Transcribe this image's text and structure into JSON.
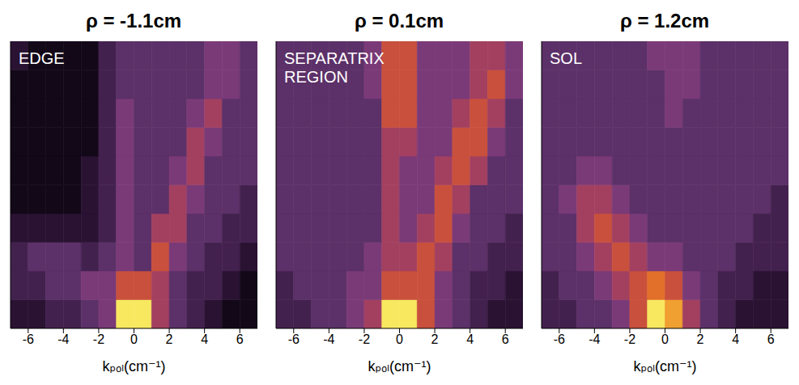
{
  "chart_data": [
    {
      "type": "heatmap",
      "title": "ρ = -1.1cm",
      "annotation": "EDGE",
      "x_label": "kₚₒₗ(cm⁻¹)",
      "xlim": [
        -7,
        7
      ],
      "xticks": [
        -6,
        -4,
        -2,
        0,
        2,
        4,
        6
      ],
      "ylim": [
        0,
        10
      ],
      "tick_labels": "x",
      "zlim": [
        0,
        9
      ],
      "x": [
        -6.5,
        -5.5,
        -4.5,
        -3.5,
        -2.5,
        -1.5,
        -0.5,
        0.5,
        1.5,
        2.5,
        3.5,
        4.5,
        5.5,
        6.5
      ],
      "y": [
        0.5,
        1.5,
        2.5,
        3.5,
        4.5,
        5.5,
        6.5,
        7.5,
        8.5,
        9.5
      ],
      "z": [
        [
          1,
          1,
          2,
          2,
          3,
          4,
          9,
          9,
          5,
          3,
          2,
          1,
          0,
          0
        ],
        [
          2,
          2,
          3,
          3,
          4,
          4,
          6,
          6,
          5,
          3,
          2,
          2,
          1,
          0
        ],
        [
          2,
          3,
          3,
          3,
          2,
          3,
          4,
          3,
          6,
          4,
          3,
          2,
          2,
          1
        ],
        [
          1,
          1,
          1,
          1,
          1,
          2,
          4,
          3,
          5,
          5,
          3,
          3,
          2,
          2
        ],
        [
          0,
          0,
          0,
          0,
          1,
          2,
          4,
          3,
          3,
          5,
          4,
          3,
          3,
          2
        ],
        [
          0,
          0,
          0,
          0,
          1,
          2,
          4,
          3,
          3,
          4,
          5,
          3,
          3,
          3
        ],
        [
          0,
          0,
          0,
          0,
          0,
          2,
          4,
          3,
          3,
          3,
          5,
          4,
          3,
          3
        ],
        [
          0,
          0,
          0,
          0,
          0,
          2,
          4,
          3,
          3,
          3,
          4,
          5,
          3,
          3
        ],
        [
          0,
          0,
          0,
          0,
          0,
          2,
          3,
          3,
          3,
          3,
          3,
          4,
          4,
          3
        ],
        [
          1,
          0,
          0,
          0,
          0,
          2,
          3,
          3,
          3,
          3,
          3,
          4,
          4,
          3
        ]
      ]
    },
    {
      "type": "heatmap",
      "title": "ρ = 0.1cm",
      "annotation": "SEPARATRIX REGION",
      "x_label": "kₚₒₗ(cm⁻¹)",
      "xlim": [
        -7,
        7
      ],
      "xticks": [
        -6,
        -4,
        -2,
        0,
        2,
        4,
        6
      ],
      "ylim": [
        0,
        10
      ],
      "tick_labels": "x",
      "zlim": [
        0,
        9
      ],
      "x": [
        -6.5,
        -5.5,
        -4.5,
        -3.5,
        -2.5,
        -1.5,
        -0.5,
        0.5,
        1.5,
        2.5,
        3.5,
        4.5,
        5.5,
        6.5
      ],
      "y": [
        0.5,
        1.5,
        2.5,
        3.5,
        4.5,
        5.5,
        6.5,
        7.5,
        8.5,
        9.5
      ],
      "z": [
        [
          2,
          2,
          3,
          3,
          4,
          5,
          9,
          9,
          6,
          4,
          3,
          2,
          1,
          1
        ],
        [
          2,
          3,
          3,
          3,
          4,
          4,
          6,
          6,
          6,
          4,
          3,
          2,
          2,
          1
        ],
        [
          3,
          3,
          3,
          3,
          3,
          4,
          5,
          5,
          6,
          5,
          3,
          3,
          2,
          2
        ],
        [
          3,
          3,
          3,
          3,
          3,
          3,
          5,
          4,
          5,
          6,
          4,
          3,
          3,
          2
        ],
        [
          3,
          3,
          3,
          3,
          3,
          3,
          5,
          4,
          4,
          6,
          5,
          3,
          3,
          3
        ],
        [
          3,
          3,
          3,
          3,
          3,
          3,
          5,
          4,
          4,
          5,
          6,
          5,
          3,
          3
        ],
        [
          3,
          3,
          3,
          3,
          3,
          3,
          5,
          5,
          4,
          4,
          6,
          6,
          4,
          3
        ],
        [
          3,
          3,
          3,
          3,
          3,
          3,
          6,
          6,
          4,
          4,
          5,
          6,
          5,
          3
        ],
        [
          3,
          3,
          3,
          3,
          3,
          4,
          6,
          6,
          4,
          4,
          4,
          5,
          6,
          4
        ],
        [
          3,
          3,
          3,
          3,
          3,
          4,
          6,
          6,
          4,
          4,
          4,
          5,
          5,
          4
        ]
      ]
    },
    {
      "type": "heatmap",
      "title": "ρ = 1.2cm",
      "annotation": "SOL",
      "x_label": "kₚₒₗ(cm⁻¹)",
      "xlim": [
        -7,
        7
      ],
      "xticks": [
        -6,
        -4,
        -2,
        0,
        2,
        4,
        6
      ],
      "ylim": [
        0,
        10
      ],
      "tick_labels": "x",
      "zlim": [
        0,
        9
      ],
      "x": [
        -6.5,
        -5.5,
        -4.5,
        -3.5,
        -2.5,
        -1.5,
        -0.5,
        0.5,
        1.5,
        2.5,
        3.5,
        4.5,
        5.5,
        6.5
      ],
      "y": [
        0.5,
        1.5,
        2.5,
        3.5,
        4.5,
        5.5,
        6.5,
        7.5,
        8.5,
        9.5
      ],
      "z": [
        [
          2,
          2,
          3,
          3,
          4,
          6,
          9,
          8,
          5,
          3,
          2,
          1,
          1,
          1
        ],
        [
          2,
          3,
          3,
          4,
          5,
          6,
          7,
          6,
          4,
          3,
          2,
          2,
          1,
          1
        ],
        [
          3,
          3,
          4,
          5,
          6,
          5,
          4,
          4,
          3,
          3,
          3,
          2,
          2,
          2
        ],
        [
          3,
          3,
          5,
          6,
          5,
          4,
          3,
          3,
          3,
          3,
          3,
          3,
          2,
          2
        ],
        [
          3,
          4,
          5,
          5,
          4,
          3,
          3,
          3,
          3,
          3,
          3,
          3,
          3,
          2
        ],
        [
          3,
          3,
          4,
          4,
          3,
          3,
          3,
          3,
          3,
          3,
          3,
          3,
          3,
          3
        ],
        [
          3,
          3,
          3,
          3,
          3,
          3,
          3,
          3,
          3,
          3,
          3,
          3,
          3,
          3
        ],
        [
          3,
          3,
          3,
          3,
          3,
          3,
          3,
          4,
          3,
          3,
          3,
          3,
          3,
          3
        ],
        [
          3,
          3,
          3,
          3,
          3,
          3,
          3,
          4,
          4,
          3,
          3,
          3,
          3,
          3
        ],
        [
          3,
          3,
          3,
          3,
          3,
          3,
          4,
          4,
          4,
          3,
          3,
          3,
          3,
          3
        ]
      ]
    }
  ]
}
